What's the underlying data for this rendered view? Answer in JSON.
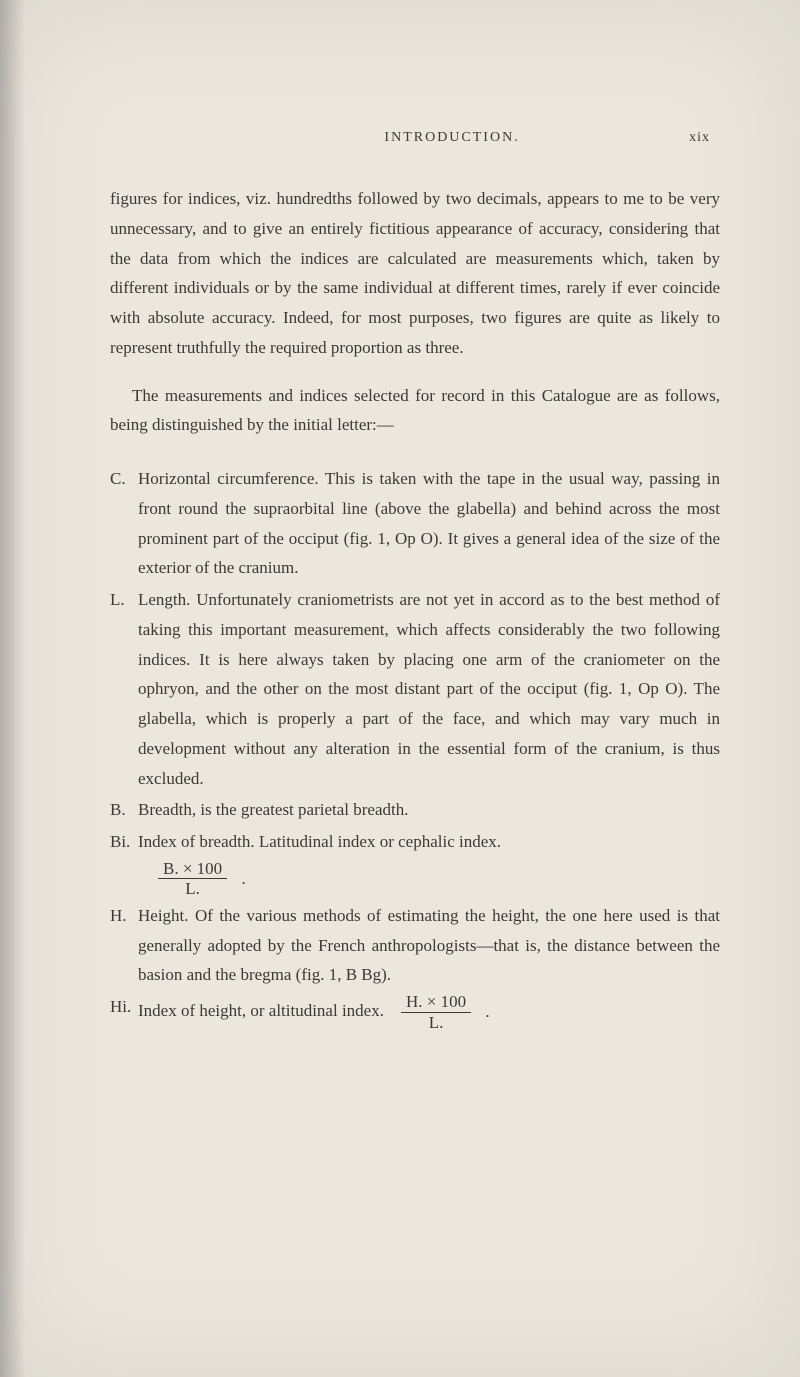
{
  "header": {
    "title": "INTRODUCTION.",
    "page_number": "xix"
  },
  "para1": "figures for indices, viz. hundredths followed by two decimals, appears to me to be very unnecessary, and to give an entirely fictitious appearance of accuracy, considering that the data from which the indices are calculated are measurements which, taken by different individuals or by the same individual at different times, rarely if ever coincide with absolute accuracy. Indeed, for most purposes, two figures are quite as likely to represent truthfully the required proportion as three.",
  "para2": "The measurements and indices selected for record in this Catalogue are as follows, being distinguished by the initial letter:—",
  "defs": {
    "c_label": "C.",
    "c_text": "Horizontal circumference. This is taken with the tape in the usual way, passing in front round the supraorbital line (above the glabella) and behind across the most prominent part of the occiput (fig. 1, Op O). It gives a general idea of the size of the exterior of the cranium.",
    "l_label": "L.",
    "l_text": "Length. Unfortunately craniometrists are not yet in accord as to the best method of taking this important measurement, which affects considerably the two following indices. It is here always taken by placing one arm of the craniometer on the ophryon, and the other on the most distant part of the occiput (fig. 1, Op O). The glabella, which is properly a part of the face, and which may vary much in development without any alteration in the essential form of the cranium, is thus excluded.",
    "b_label": "B.",
    "b_text": "Breadth, is the greatest parietal breadth.",
    "bi_label": "Bi.",
    "bi_text": "Index of breadth. Latitudinal index or cephalic index.",
    "bi_numerator": "B. × 100",
    "bi_denominator": "L.",
    "h_label": "H.",
    "h_text": "Height. Of the various methods of estimating the height, the one here used is that generally adopted by the French anthropologists—that is, the distance between the basion and the bregma (fig. 1, B Bg).",
    "hi_label": "Hi.",
    "hi_text": "Index of height, or altitudinal index.",
    "hi_numerator": "H. × 100",
    "hi_denominator": "L.",
    "period": "."
  }
}
